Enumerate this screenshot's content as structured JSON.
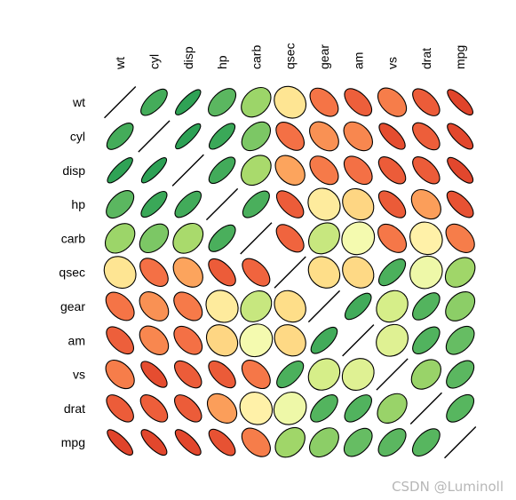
{
  "chart_data": {
    "type": "heatmap",
    "variables": [
      "wt",
      "cyl",
      "disp",
      "hp",
      "carb",
      "qsec",
      "gear",
      "am",
      "vs",
      "drat",
      "mpg"
    ],
    "color_scale": {
      "-1": "#d7301f",
      "-0.6": "#f46d43",
      "-0.4": "#fdae61",
      "-0.2": "#fee08b",
      "0": "#ffffbf",
      "0.2": "#d9ef8b",
      "0.4": "#a6d96a",
      "0.6": "#66bd63",
      "1": "#1a9850"
    },
    "matrix": [
      [
        1.0,
        0.78,
        0.89,
        0.66,
        0.43,
        -0.17,
        -0.58,
        -0.69,
        -0.55,
        -0.71,
        -0.87
      ],
      [
        0.78,
        1.0,
        0.9,
        0.83,
        0.53,
        -0.59,
        -0.49,
        -0.52,
        -0.81,
        -0.7,
        -0.85
      ],
      [
        0.89,
        0.9,
        1.0,
        0.79,
        0.39,
        -0.43,
        -0.56,
        -0.59,
        -0.71,
        -0.71,
        -0.85
      ],
      [
        0.66,
        0.83,
        0.79,
        1.0,
        0.75,
        -0.71,
        -0.13,
        -0.24,
        -0.72,
        -0.45,
        -0.78
      ],
      [
        0.43,
        0.53,
        0.39,
        0.75,
        1.0,
        -0.66,
        0.27,
        0.06,
        -0.57,
        -0.09,
        -0.55
      ],
      [
        -0.17,
        -0.59,
        -0.43,
        -0.71,
        -0.66,
        1.0,
        -0.21,
        -0.23,
        0.74,
        0.09,
        0.42
      ],
      [
        -0.58,
        -0.49,
        -0.56,
        -0.13,
        0.27,
        -0.21,
        1.0,
        0.79,
        0.21,
        0.7,
        0.48
      ],
      [
        -0.69,
        -0.52,
        -0.59,
        -0.24,
        0.06,
        -0.23,
        0.79,
        1.0,
        0.17,
        0.71,
        0.6
      ],
      [
        -0.55,
        -0.81,
        -0.71,
        -0.72,
        -0.57,
        0.74,
        0.21,
        0.17,
        1.0,
        0.44,
        0.66
      ],
      [
        -0.71,
        -0.7,
        -0.71,
        -0.45,
        -0.09,
        0.09,
        0.7,
        0.71,
        0.44,
        1.0,
        0.68
      ],
      [
        -0.87,
        -0.85,
        -0.85,
        -0.78,
        -0.55,
        0.42,
        0.48,
        0.6,
        0.66,
        0.68,
        1.0
      ]
    ],
    "diagonal_style": "line",
    "grid": false,
    "legend": "none"
  },
  "watermark": "CSDN @Luminoll"
}
